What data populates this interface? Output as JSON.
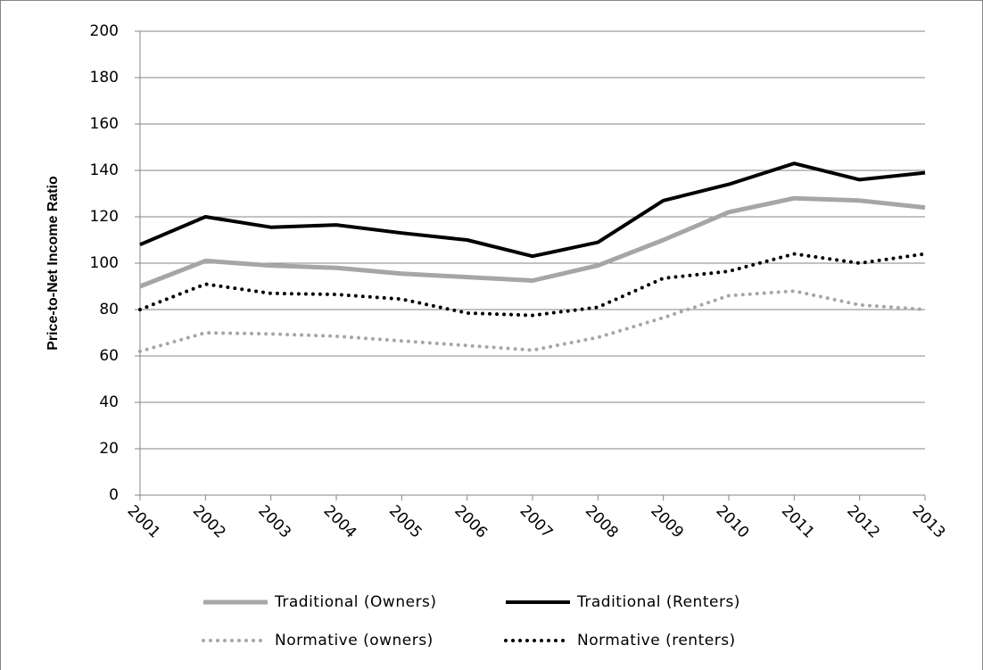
{
  "chart_data": {
    "type": "line",
    "y_label": "Price-to-Net Income Ratio",
    "categories": [
      "2001",
      "2002",
      "2003",
      "2004",
      "2005",
      "2006",
      "2007",
      "2008",
      "2009",
      "2010",
      "2011",
      "2012",
      "2013"
    ],
    "series": [
      {
        "name": "Traditional (Owners)",
        "color": "#a6a6a6",
        "style": "solid",
        "values": [
          90,
          101,
          99,
          98,
          95.5,
          94,
          92.5,
          99,
          110,
          122,
          128,
          127,
          124
        ]
      },
      {
        "name": "Traditional (Renters)",
        "color": "#000000",
        "style": "solid",
        "values": [
          108,
          120,
          115.5,
          116.5,
          113,
          110,
          103,
          109,
          127,
          134,
          143,
          136,
          139
        ]
      },
      {
        "name": "Normative (owners)",
        "color": "#a6a6a6",
        "style": "dotted",
        "values": [
          62,
          70,
          69.5,
          68.5,
          66.5,
          64.5,
          62.5,
          68,
          76.5,
          86,
          88,
          82,
          80
        ]
      },
      {
        "name": "Normative (renters)",
        "color": "#000000",
        "style": "dotted",
        "values": [
          80,
          91,
          87,
          86.5,
          84.5,
          78.5,
          77.5,
          81,
          93.5,
          96.5,
          104,
          100,
          104
        ]
      }
    ],
    "ylim": [
      0,
      200
    ],
    "yticks": [
      0,
      20,
      40,
      60,
      80,
      100,
      120,
      140,
      160,
      180,
      200
    ],
    "grid": true
  }
}
